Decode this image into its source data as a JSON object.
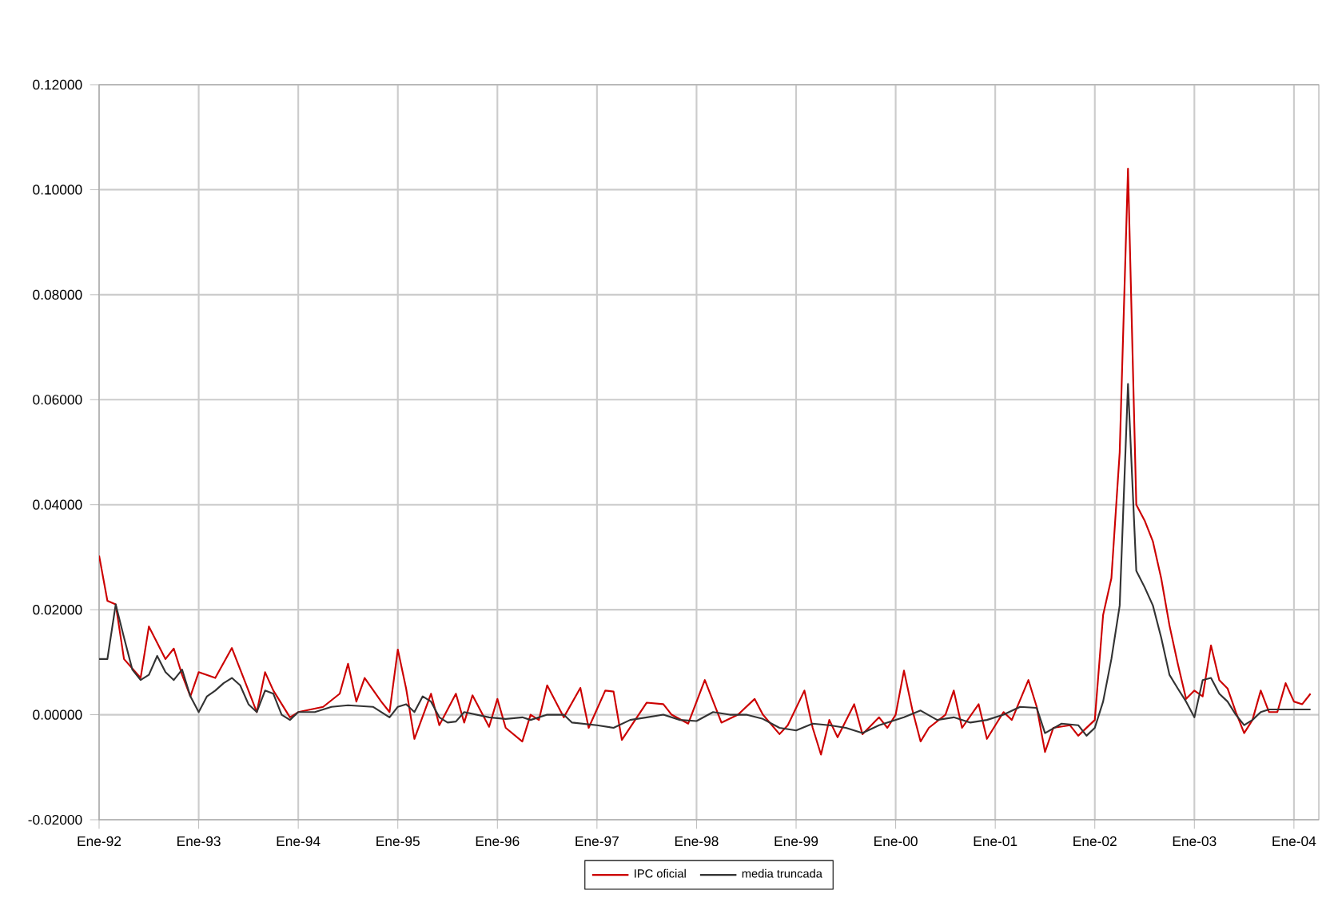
{
  "chart_data": {
    "type": "line",
    "xlim": [
      "1992-01",
      "2004-04"
    ],
    "ylim": [
      -0.02,
      0.12
    ],
    "xticks": [
      {
        "value": "1992-01",
        "label": "Ene-92"
      },
      {
        "value": "1993-01",
        "label": "Ene-93"
      },
      {
        "value": "1994-01",
        "label": "Ene-94"
      },
      {
        "value": "1995-01",
        "label": "Ene-95"
      },
      {
        "value": "1996-01",
        "label": "Ene-96"
      },
      {
        "value": "1997-01",
        "label": "Ene-97"
      },
      {
        "value": "1998-01",
        "label": "Ene-98"
      },
      {
        "value": "1999-01",
        "label": "Ene-99"
      },
      {
        "value": "2000-01",
        "label": "Ene-00"
      },
      {
        "value": "2001-01",
        "label": "Ene-01"
      },
      {
        "value": "2002-01",
        "label": "Ene-02"
      },
      {
        "value": "2003-01",
        "label": "Ene-03"
      },
      {
        "value": "2004-01",
        "label": "Ene-04"
      }
    ],
    "yticks": [
      {
        "value": -0.02,
        "label": "-0.02000"
      },
      {
        "value": 0,
        "label": "0.00000"
      },
      {
        "value": 0.02,
        "label": "0.02000"
      },
      {
        "value": 0.04,
        "label": "0.04000"
      },
      {
        "value": 0.06,
        "label": "0.06000"
      },
      {
        "value": 0.08,
        "label": "0.08000"
      },
      {
        "value": 0.1,
        "label": "0.10000"
      },
      {
        "value": 0.12,
        "label": "0.12000"
      }
    ],
    "grid": true,
    "legend": "bottom",
    "marker": "none",
    "line_style": "solid",
    "series": [
      {
        "name": "IPC oficial",
        "color": "#cc0000",
        "x": [
          "1992-01",
          "1992-02",
          "1992-03",
          "1992-04",
          "1992-06",
          "1992-07",
          "1992-09",
          "1992-10",
          "1992-11",
          "1992-12",
          "1993-01",
          "1993-03",
          "1993-05",
          "1993-07",
          "1993-08",
          "1993-09",
          "1993-10",
          "1993-12",
          "1994-01",
          "1994-04",
          "1994-06",
          "1994-07",
          "1994-08",
          "1994-09",
          "1994-11",
          "1994-12",
          "1995-01",
          "1995-02",
          "1995-03",
          "1995-05",
          "1995-06",
          "1995-08",
          "1995-09",
          "1995-10",
          "1995-12",
          "1996-01",
          "1996-02",
          "1996-04",
          "1996-05",
          "1996-06",
          "1996-07",
          "1996-09",
          "1996-11",
          "1996-12",
          "1997-02",
          "1997-03",
          "1997-04",
          "1997-07",
          "1997-09",
          "1997-10",
          "1997-12",
          "1998-02",
          "1998-04",
          "1998-06",
          "1998-08",
          "1998-09",
          "1998-11",
          "1998-12",
          "1999-02",
          "1999-03",
          "1999-04",
          "1999-05",
          "1999-06",
          "1999-08",
          "1999-09",
          "1999-11",
          "1999-12",
          "2000-01",
          "2000-02",
          "2000-03",
          "2000-04",
          "2000-05",
          "2000-07",
          "2000-08",
          "2000-09",
          "2000-11",
          "2000-12",
          "2001-02",
          "2001-03",
          "2001-05",
          "2001-06",
          "2001-07",
          "2001-08",
          "2001-10",
          "2001-11",
          "2002-01",
          "2002-02",
          "2002-03",
          "2002-04",
          "2002-05",
          "2002-06",
          "2002-07",
          "2002-08",
          "2002-09",
          "2002-10",
          "2002-11",
          "2002-12",
          "2003-01",
          "2003-02",
          "2003-03",
          "2003-04",
          "2003-05",
          "2003-06",
          "2003-07",
          "2003-08",
          "2003-09",
          "2003-10",
          "2003-11",
          "2003-12",
          "2004-01",
          "2004-02",
          "2004-03"
        ],
        "values": [
          0.0303,
          0.0217,
          0.021,
          0.0106,
          0.007,
          0.0168,
          0.0106,
          0.0126,
          0.0076,
          0.0035,
          0.0081,
          0.007,
          0.0127,
          0.0046,
          0.0005,
          0.0081,
          0.0046,
          -0.0005,
          0.0005,
          0.0015,
          0.004,
          0.0097,
          0.0025,
          0.007,
          0.0025,
          0.0005,
          0.0124,
          0.005,
          -0.0046,
          0.004,
          -0.002,
          0.004,
          -0.0015,
          0.0037,
          -0.0023,
          0.003,
          -0.0025,
          -0.0051,
          0.0,
          -0.001,
          0.0056,
          -0.0005,
          0.0051,
          -0.0025,
          0.0046,
          0.0044,
          -0.0048,
          0.0023,
          0.002,
          0.0,
          -0.0017,
          0.0066,
          -0.0015,
          0.0,
          0.003,
          0.0,
          -0.0037,
          -0.002,
          0.0046,
          -0.0025,
          -0.0076,
          -0.001,
          -0.0043,
          0.002,
          -0.0037,
          -0.0005,
          -0.0025,
          0.0,
          0.0084,
          0.001,
          -0.0051,
          -0.0025,
          0.0,
          0.0046,
          -0.0025,
          0.002,
          -0.0046,
          0.0005,
          -0.001,
          0.0066,
          0.0015,
          -0.0071,
          -0.0025,
          -0.002,
          -0.004,
          -0.001,
          0.019,
          0.026,
          0.05,
          0.104,
          0.04,
          0.037,
          0.033,
          0.026,
          0.017,
          0.0097,
          0.003,
          0.0046,
          0.0035,
          0.0132,
          0.0066,
          0.005,
          0.0005,
          -0.0035,
          -0.001,
          0.0046,
          0.0005,
          0.0005,
          0.006,
          0.0025,
          0.002,
          0.004
        ]
      },
      {
        "name": "media truncada",
        "color": "#333333",
        "x": [
          "1992-01",
          "1992-02",
          "1992-03",
          "1992-04",
          "1992-05",
          "1992-06",
          "1992-07",
          "1992-08",
          "1992-09",
          "1992-10",
          "1992-11",
          "1992-12",
          "1993-01",
          "1993-02",
          "1993-03",
          "1993-04",
          "1993-05",
          "1993-06",
          "1993-07",
          "1993-08",
          "1993-09",
          "1993-10",
          "1993-11",
          "1993-12",
          "1994-01",
          "1994-03",
          "1994-05",
          "1994-07",
          "1994-10",
          "1994-12",
          "1995-01",
          "1995-02",
          "1995-03",
          "1995-04",
          "1995-05",
          "1995-06",
          "1995-07",
          "1995-08",
          "1995-09",
          "1995-12",
          "1996-02",
          "1996-04",
          "1996-05",
          "1996-07",
          "1996-09",
          "1996-10",
          "1997-01",
          "1997-03",
          "1997-05",
          "1997-07",
          "1997-09",
          "1997-11",
          "1998-01",
          "1998-03",
          "1998-05",
          "1998-07",
          "1998-09",
          "1998-11",
          "1999-01",
          "1999-03",
          "1999-05",
          "1999-07",
          "1999-09",
          "1999-11",
          "2000-01",
          "2000-02",
          "2000-04",
          "2000-06",
          "2000-08",
          "2000-10",
          "2000-12",
          "2001-02",
          "2001-04",
          "2001-06",
          "2001-07",
          "2001-09",
          "2001-11",
          "2001-12",
          "2002-01",
          "2002-02",
          "2002-03",
          "2002-04",
          "2002-05",
          "2002-06",
          "2002-07",
          "2002-08",
          "2002-09",
          "2002-10",
          "2002-11",
          "2002-12",
          "2003-01",
          "2003-02",
          "2003-03",
          "2003-04",
          "2003-05",
          "2003-06",
          "2003-07",
          "2003-08",
          "2003-09",
          "2003-10",
          "2004-03"
        ],
        "values": [
          0.0106,
          0.0106,
          0.021,
          0.0147,
          0.0086,
          0.0066,
          0.0076,
          0.0112,
          0.0081,
          0.0066,
          0.0086,
          0.0035,
          0.0005,
          0.0035,
          0.0046,
          0.006,
          0.007,
          0.0056,
          0.002,
          0.0005,
          0.0046,
          0.004,
          0.0,
          -0.001,
          0.0005,
          0.0005,
          0.0015,
          0.0018,
          0.0015,
          -0.0005,
          0.0015,
          0.002,
          0.0005,
          0.0035,
          0.0025,
          -0.0005,
          -0.0015,
          -0.0013,
          0.0005,
          -0.0005,
          -0.0008,
          -0.0005,
          -0.001,
          0.0,
          0.0,
          -0.0015,
          -0.002,
          -0.0025,
          -0.001,
          -0.0005,
          0.0,
          -0.001,
          -0.0012,
          0.0005,
          0.0,
          0.0,
          -0.0008,
          -0.0025,
          -0.003,
          -0.0017,
          -0.002,
          -0.0025,
          -0.0035,
          -0.002,
          -0.001,
          -0.0005,
          0.0008,
          -0.001,
          -0.0005,
          -0.0015,
          -0.001,
          0.0,
          0.0015,
          0.0013,
          -0.0035,
          -0.0017,
          -0.002,
          -0.004,
          -0.0025,
          0.0025,
          0.0106,
          0.0208,
          0.063,
          0.0274,
          0.0243,
          0.0208,
          0.0147,
          0.0076,
          0.005,
          0.0025,
          -0.0005,
          0.0066,
          0.007,
          0.004,
          0.0025,
          0.0,
          -0.002,
          -0.001,
          0.0005,
          0.001,
          0.001
        ]
      }
    ]
  }
}
